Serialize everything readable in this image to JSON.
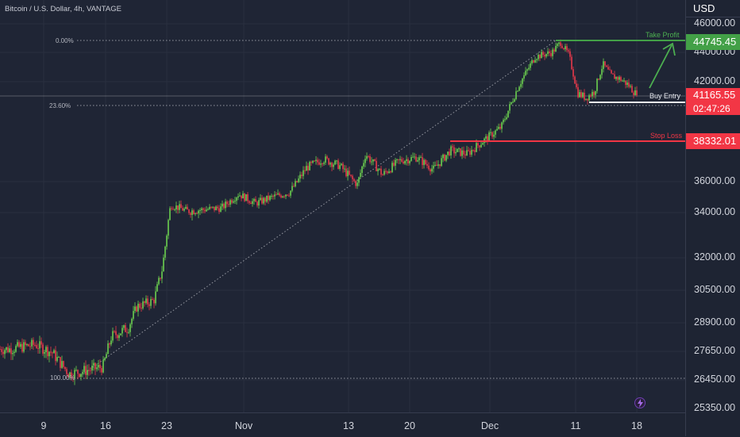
{
  "chart_title": "Bitcoin / U.S. Dollar, 4h, VANTAGE",
  "price_axis": {
    "currency": "USD",
    "ticks": [
      "46000.00",
      "44000.00",
      "42000.00",
      "36000.00",
      "34000.00",
      "32000.00",
      "30500.00",
      "28900.00",
      "27650.00",
      "26450.00",
      "25350.00"
    ]
  },
  "time_axis": {
    "ticks": [
      "9",
      "16",
      "23",
      "Nov",
      "13",
      "20",
      "Dec",
      "11",
      "18"
    ]
  },
  "price_tags": {
    "take_profit": "44745.45",
    "last_price": "41165.55",
    "countdown": "02:47:26",
    "stop_loss": "38332.01"
  },
  "fib_levels": {
    "level_0": "0.00%",
    "level_236": "23.60%",
    "level_100": "100.00%"
  },
  "annotations": {
    "take_profit": "Take Profit",
    "buy_entry": "Buy Entry",
    "stop_loss": "Stop Loss"
  },
  "icons": {
    "flash": "flash-icon"
  },
  "colors": {
    "bull": "#6bd04f",
    "bear": "#e8394a",
    "take_profit": "#43a047",
    "stop_loss": "#f23645",
    "last_price": "#f23645"
  },
  "chart_data": {
    "type": "candlestick",
    "symbol": "Bitcoin / U.S. Dollar",
    "interval": "4h",
    "close_path": [
      [
        "Oct 5",
        27750
      ],
      [
        "Oct 8",
        27950
      ],
      [
        "Oct 10",
        27600
      ],
      [
        "Oct 12",
        26700
      ],
      [
        "Oct 14",
        26850
      ],
      [
        "Oct 16",
        27000
      ],
      [
        "Oct 17",
        28300
      ],
      [
        "Oct 19",
        28700
      ],
      [
        "Oct 20",
        29700
      ],
      [
        "Oct 22",
        30000
      ],
      [
        "Oct 23",
        31500
      ],
      [
        "Oct 24",
        34500
      ],
      [
        "Oct 26",
        34100
      ],
      [
        "Oct 28",
        34200
      ],
      [
        "Oct 30",
        34300
      ],
      [
        "Nov 1",
        35200
      ],
      [
        "Nov 3",
        34600
      ],
      [
        "Nov 5",
        35000
      ],
      [
        "Nov 7",
        35300
      ],
      [
        "Nov 9",
        36800
      ],
      [
        "Nov 11",
        37300
      ],
      [
        "Nov 13",
        36900
      ],
      [
        "Nov 15",
        35800
      ],
      [
        "Nov 16",
        37600
      ],
      [
        "Nov 18",
        36400
      ],
      [
        "Nov 20",
        37200
      ],
      [
        "Nov 22",
        37400
      ],
      [
        "Nov 24",
        36700
      ],
      [
        "Nov 26",
        37800
      ],
      [
        "Nov 28",
        37600
      ],
      [
        "Nov 30",
        38400
      ],
      [
        "Dec 2",
        39200
      ],
      [
        "Dec 4",
        41700
      ],
      [
        "Dec 6",
        43700
      ],
      [
        "Dec 8",
        44000
      ],
      [
        "Dec 9",
        44700
      ],
      [
        "Dec 10",
        43800
      ],
      [
        "Dec 11",
        41300
      ],
      [
        "Dec 12",
        41000
      ],
      [
        "Dec 13",
        41400
      ],
      [
        "Dec 14",
        43200
      ],
      [
        "Dec 15",
        42400
      ],
      [
        "Dec 16",
        42200
      ],
      [
        "Dec 17",
        41800
      ],
      [
        "Dec 18",
        41165.55
      ]
    ],
    "levels": {
      "take_profit": 44745.45,
      "buy_entry": 40700,
      "stop_loss": 38332.01
    },
    "fib": {
      "0.00%": 44745,
      "23.60%": 40350,
      "100.00%": 26450
    }
  }
}
